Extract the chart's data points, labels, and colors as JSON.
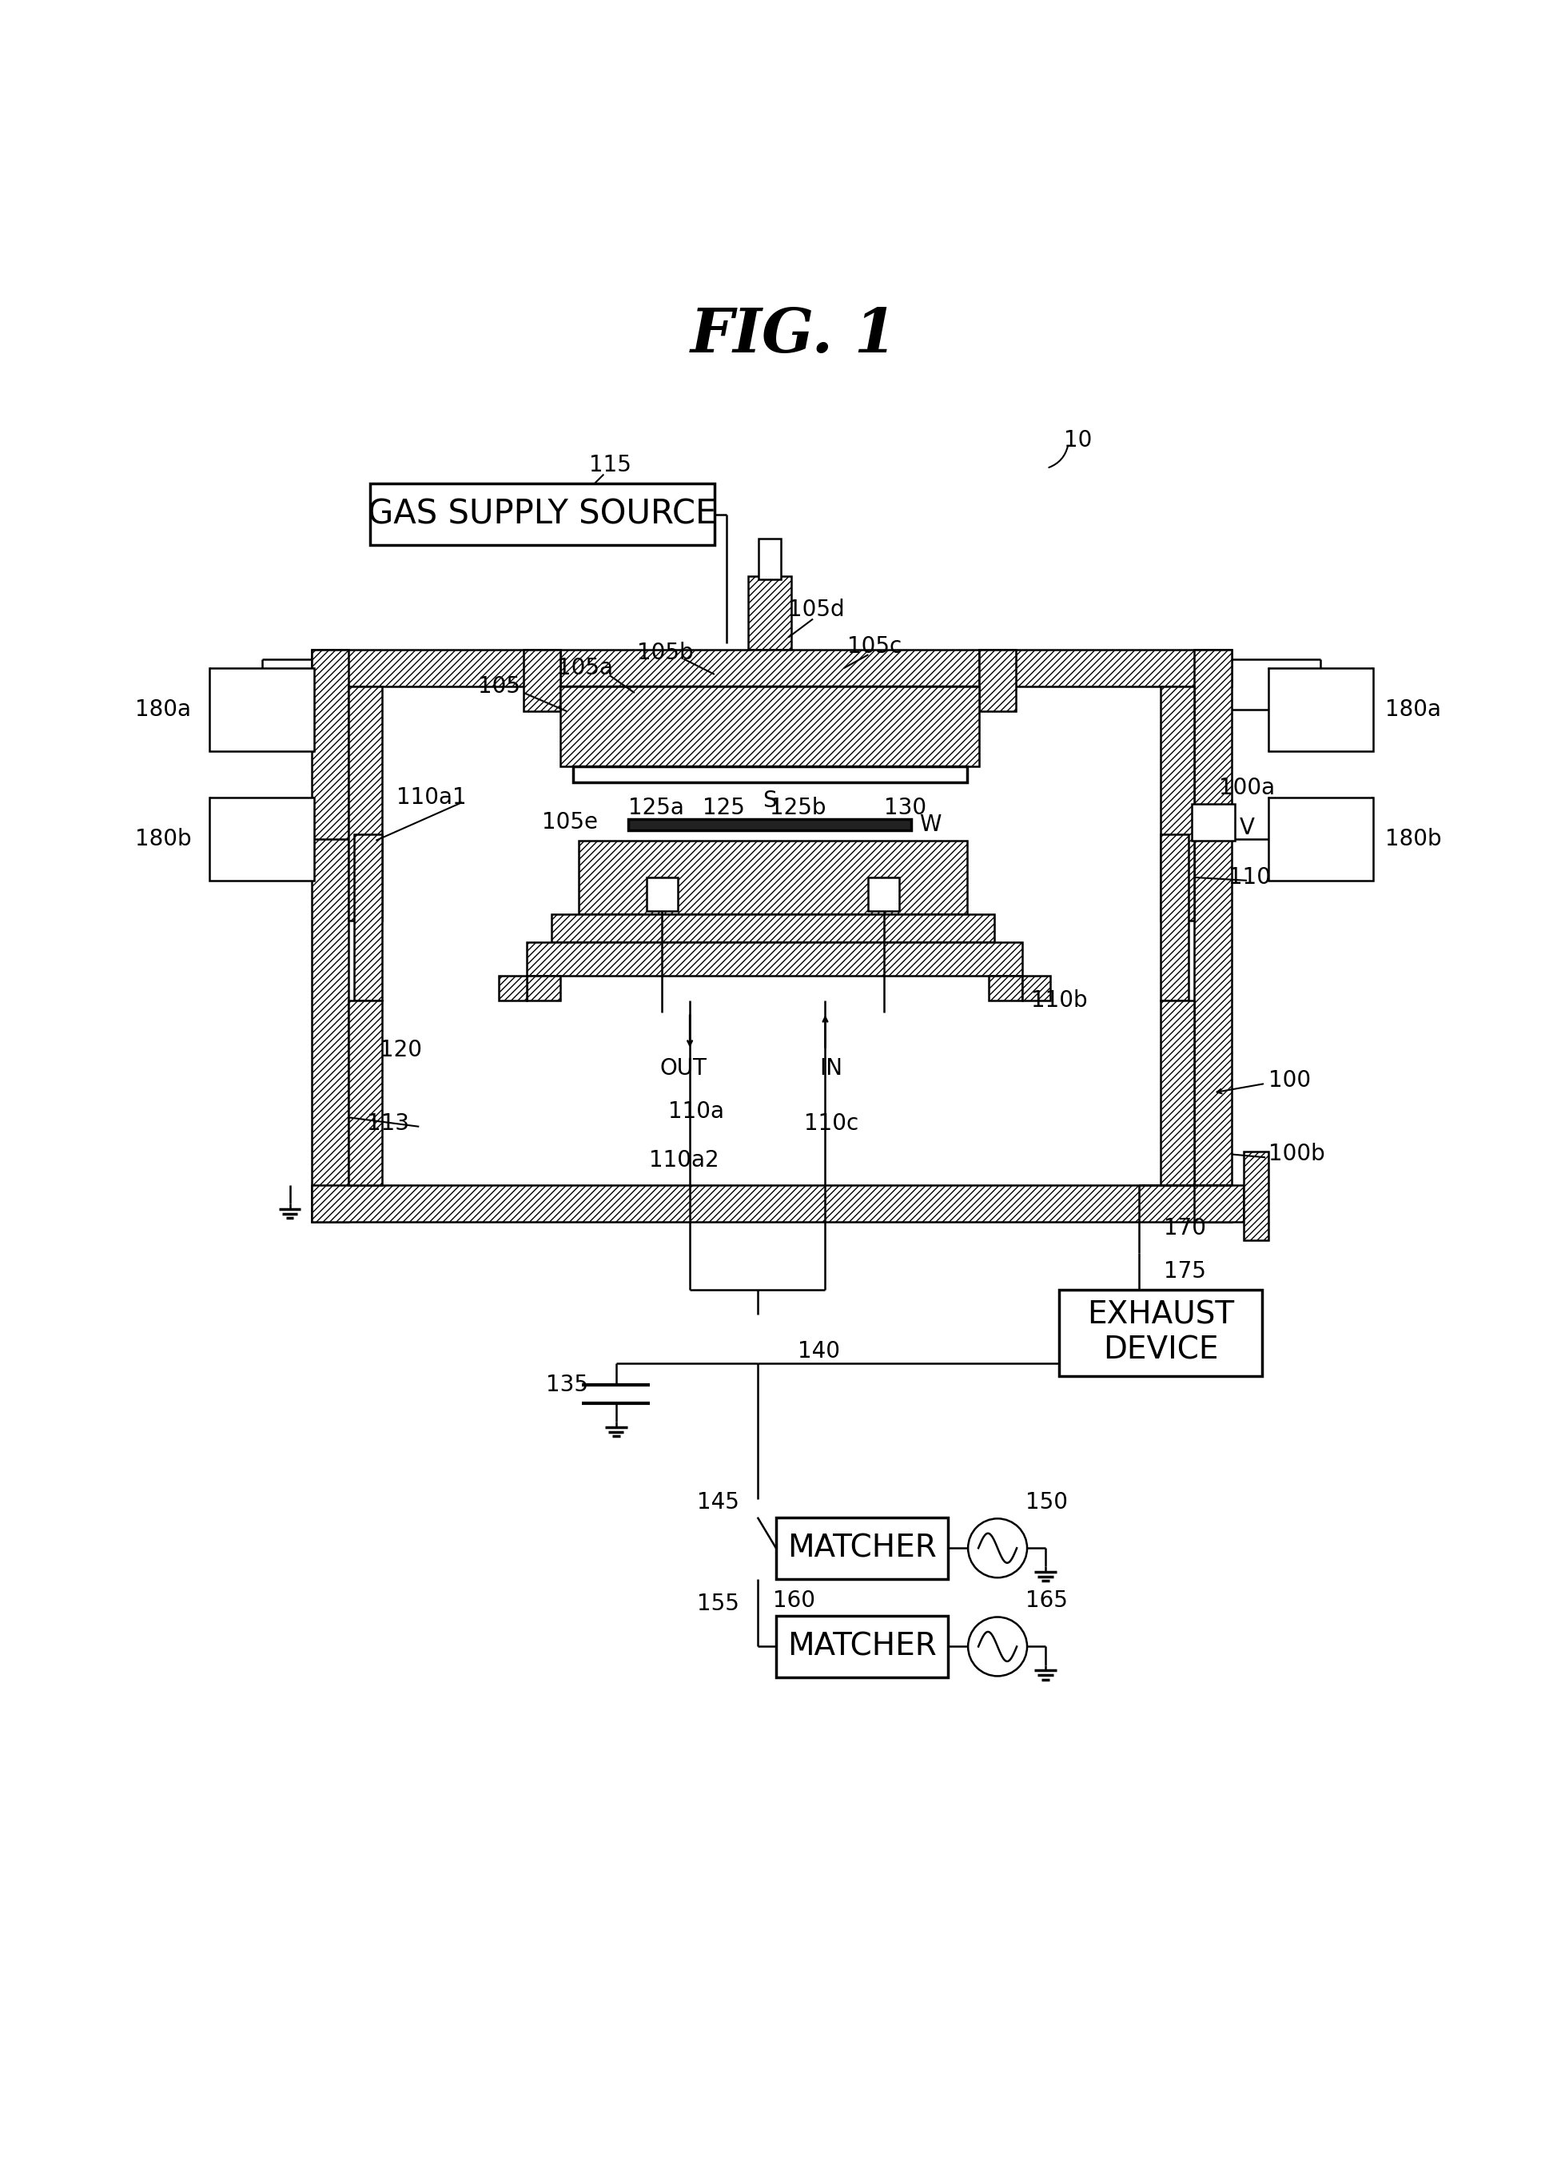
{
  "title": "FIG. 1",
  "background_color": "#ffffff",
  "fig_width": 19.38,
  "fig_height": 27.33,
  "labels": {
    "title": "FIG. 1",
    "ref_10": "10",
    "ref_100": "100",
    "ref_100a": "100a",
    "ref_100b": "100b",
    "ref_105": "105",
    "ref_105a": "105a",
    "ref_105b": "105b",
    "ref_105c": "105c",
    "ref_105d": "105d",
    "ref_105e": "105e",
    "ref_110": "110",
    "ref_110a": "110a",
    "ref_110a1": "110a1",
    "ref_110a2": "110a2",
    "ref_110b": "110b",
    "ref_110c": "110c",
    "ref_113": "113",
    "ref_115": "115",
    "ref_120": "120",
    "ref_125": "125",
    "ref_125a": "125a",
    "ref_125b": "125b",
    "ref_130": "130",
    "ref_135": "135",
    "ref_140": "140",
    "ref_145": "145",
    "ref_150": "150",
    "ref_155": "155",
    "ref_160": "160",
    "ref_165": "165",
    "ref_170": "170",
    "ref_175": "175",
    "ref_180a": "180a",
    "ref_180b": "180b",
    "gas_supply": "GAS SUPPLY SOURCE",
    "exhaust": "EXHAUST\nDEVICE",
    "matcher1": "MATCHER",
    "matcher2": "MATCHER",
    "label_s": "S",
    "label_w": "W",
    "label_v": "V",
    "label_out": "OUT",
    "label_in": "IN"
  }
}
